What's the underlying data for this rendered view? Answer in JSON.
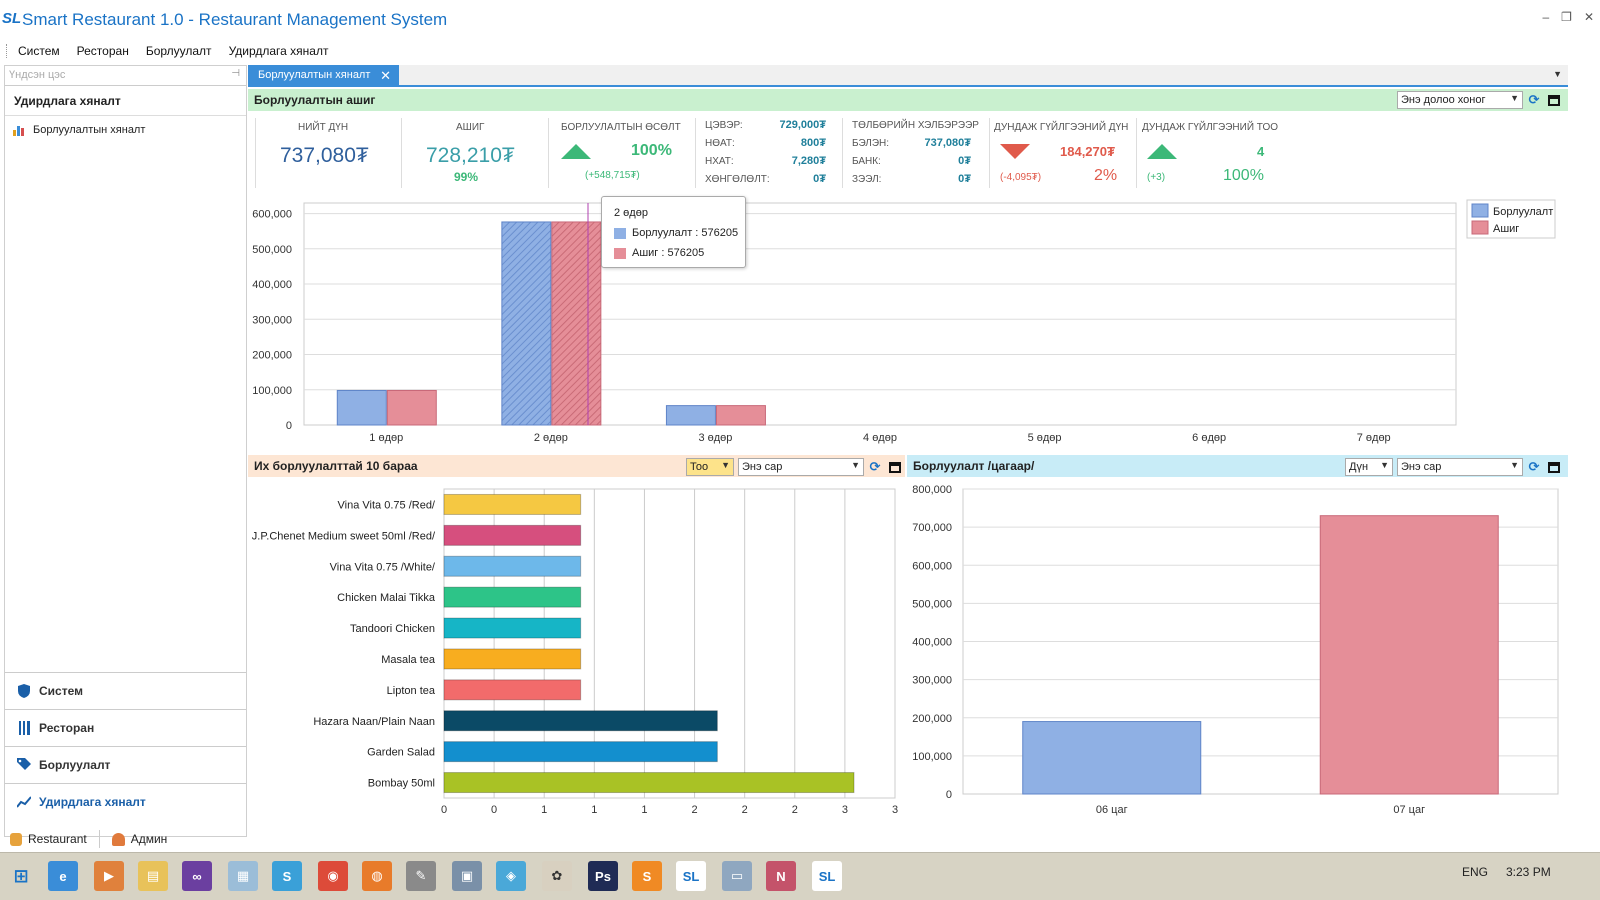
{
  "app": {
    "logo": "SL",
    "title": "Smart Restaurant 1.0 - Restaurant Management System",
    "window_controls": [
      "–",
      "❐",
      "✕"
    ]
  },
  "menu": [
    "Систем",
    "Ресторан",
    "Борлуулалт",
    "Удирдлага хяналт"
  ],
  "sidebar": {
    "search_placeholder": "Үндсэн цэс",
    "header": "Удирдлага хяналт",
    "item": "Борлуулалтын хяналт",
    "groups": [
      "Систем",
      "Ресторан",
      "Борлуулалт",
      "Удирдлага хяналт"
    ]
  },
  "tab": {
    "label": "Борлуулалтын хяналт",
    "close": "✕"
  },
  "profit_panel": {
    "title": "Борлуулалтын ашиг",
    "period": "Энэ долоо хоног"
  },
  "kpis": {
    "total": {
      "label": "НИЙТ ДҮН",
      "value": "737,080₮"
    },
    "profit": {
      "label": "АШИГ",
      "value": "728,210₮",
      "pct": "99%"
    },
    "growth": {
      "label": "БОРЛУУЛАЛТЫН ӨСӨЛТ",
      "pct": "100%",
      "delta": "(+548,715₮)"
    },
    "breakdown": [
      {
        "label": "ЦЭВЭР:",
        "value": "729,000₮"
      },
      {
        "label": "НӨАТ:",
        "value": "800₮"
      },
      {
        "label": "НХАТ:",
        "value": "7,280₮"
      },
      {
        "label": "ХӨНГӨЛӨЛТ:",
        "value": "0₮"
      }
    ],
    "payment": {
      "label": "ТӨЛБӨРИЙН ХЭЛБЭРЭЭР",
      "rows": [
        {
          "label": "БЭЛЭН:",
          "value": "737,080₮"
        },
        {
          "label": "БАНК:",
          "value": "0₮"
        },
        {
          "label": "ЗЭЭЛ:",
          "value": "0₮"
        }
      ]
    },
    "avg_amount": {
      "label": "ДУНДАЖ ГҮЙЛГЭЭНИЙ ДҮН",
      "value": "184,270₮",
      "delta": "(-4,095₮)",
      "pct": "2%"
    },
    "avg_count": {
      "label": "ДУНДАЖ ГҮЙЛГЭЭНИЙ ТОО",
      "value": "4",
      "delta": "(+3)",
      "pct": "100%"
    }
  },
  "tooltip": {
    "title": "2 өдөр",
    "rows": [
      "Борлуулалт : 576205",
      "Ашиг : 576205"
    ]
  },
  "top10_panel": {
    "title": "Их борлуулалттай 10 бараа",
    "measure": "Тоо",
    "period": "Энэ сар"
  },
  "hourly_panel": {
    "title": "Борлуулалт /цагаар/",
    "measure": "Дүн",
    "period": "Энэ сар"
  },
  "status": {
    "restaurant": "Restaurant",
    "user": "Админ"
  },
  "taskbar": {
    "lang": "ENG",
    "time": "3:23 PM"
  },
  "colors": {
    "accent": "#3a8dd8",
    "sales": "#8fb0e4",
    "profit": "#e58e98",
    "green": "#3cb878",
    "red": "#e05a4b"
  },
  "chart_data": [
    {
      "type": "bar",
      "categories": [
        "1 өдөр",
        "2 өдөр",
        "3 өдөр",
        "4 өдөр",
        "5 өдөр",
        "6 өдөр",
        "7 өдөр"
      ],
      "series": [
        {
          "name": "Борлуулалт",
          "values": [
            98000,
            576205,
            55000,
            0,
            0,
            0,
            0
          ]
        },
        {
          "name": "Ашиг",
          "values": [
            98000,
            576205,
            55000,
            0,
            0,
            0,
            0
          ]
        }
      ],
      "ylim": [
        0,
        630000
      ],
      "yticks": [
        "0",
        "100,000",
        "200,000",
        "300,000",
        "400,000",
        "500,000",
        "600,000"
      ],
      "legend": "top-right",
      "grid": true
    },
    {
      "type": "bar",
      "orientation": "horizontal",
      "categories": [
        "Vina Vita 0.75 /Red/",
        "J.P.Chenet Medium sweet 50ml /Red/",
        "Vina Vita 0.75 /White/",
        "Chicken Malai Tikka",
        "Tandoori Chicken",
        "Masala tea",
        "Lipton tea",
        "Hazara Naan/Plain Naan",
        "Garden Salad",
        "Bombay 50ml"
      ],
      "values": [
        1,
        1,
        1,
        1,
        1,
        1,
        1,
        2,
        2,
        3
      ],
      "colors": [
        "#f5c842",
        "#d64f7e",
        "#6db8ea",
        "#2dc488",
        "#16b5c6",
        "#f8ad1f",
        "#f26b6b",
        "#0b4a66",
        "#138fce",
        "#a9c225"
      ],
      "xticks": [
        "0",
        "0",
        "1",
        "1",
        "1",
        "2",
        "2",
        "2",
        "3",
        "3"
      ],
      "xlim": [
        0,
        3.3
      ],
      "grid": true
    },
    {
      "type": "bar",
      "categories": [
        "06 цаг",
        "07 цаг"
      ],
      "values": [
        190000,
        730000
      ],
      "colors": [
        "#8fb0e4",
        "#e58e98"
      ],
      "ylim": [
        0,
        800000
      ],
      "yticks": [
        "0",
        "100,000",
        "200,000",
        "300,000",
        "400,000",
        "500,000",
        "600,000",
        "700,000",
        "800,000"
      ],
      "grid": true
    }
  ]
}
